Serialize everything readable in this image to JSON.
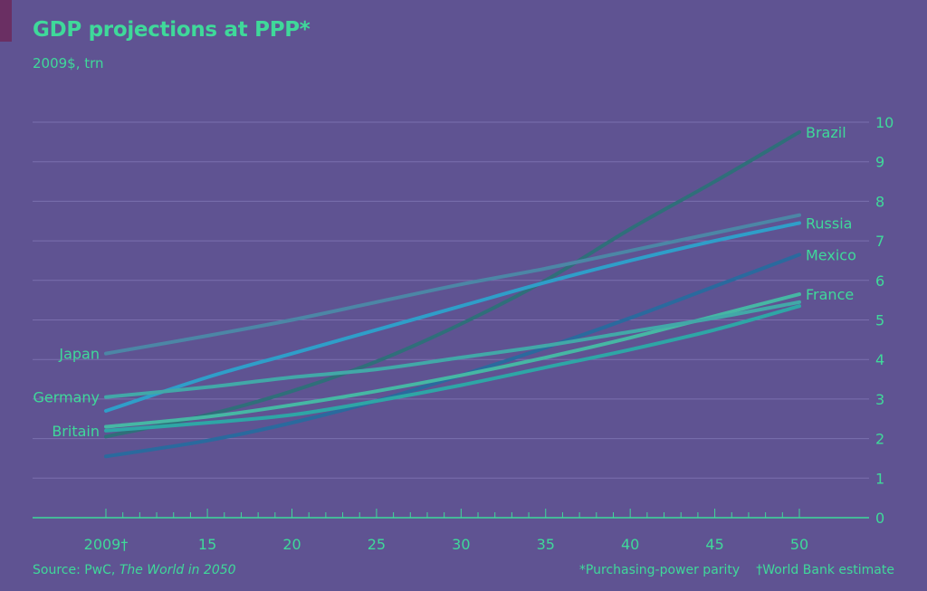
{
  "header": {
    "title": "GDP projections at PPP*",
    "subtitle": "2009$, trn"
  },
  "footer": {
    "source_prefix": "Source: PwC, ",
    "source_title": "The World in 2050",
    "footnote_ppp": "*Purchasing-power parity",
    "footnote_wb": "†World Bank estimate"
  },
  "colors": {
    "background": "#5f5392",
    "text": "#3fd99a",
    "grid": "#7a6fae",
    "axis": "#3fd99a",
    "accent_tab": "#6a2f63"
  },
  "chart_data": {
    "type": "line",
    "title": "GDP projections at PPP*",
    "subtitle": "2009$, trn",
    "xlabel": "",
    "ylabel": "",
    "x": [
      2009,
      2015,
      2020,
      2025,
      2030,
      2035,
      2040,
      2045,
      2050
    ],
    "x_tick_labels": [
      "2009†",
      "15",
      "20",
      "25",
      "30",
      "35",
      "40",
      "45",
      "50"
    ],
    "xlim": [
      2009,
      2050
    ],
    "ylim": [
      0,
      10
    ],
    "y_ticks": [
      0,
      1,
      2,
      3,
      4,
      5,
      6,
      7,
      8,
      9,
      10
    ],
    "grid": true,
    "y_axis_side": "right",
    "series": [
      {
        "name": "Brazil",
        "label_side": "right",
        "color": "#2f6f7a",
        "values": [
          2.05,
          2.6,
          3.2,
          3.95,
          4.9,
          6.0,
          7.3,
          8.5,
          9.75
        ]
      },
      {
        "name": "Russia",
        "label_side": "right",
        "color": "#2f9ec9",
        "values": [
          2.7,
          3.55,
          4.15,
          4.75,
          5.35,
          5.95,
          6.5,
          7.0,
          7.45
        ]
      },
      {
        "name": "Mexico",
        "label_side": "right",
        "color": "#2a6a9e",
        "values": [
          1.55,
          1.95,
          2.4,
          2.95,
          3.6,
          4.3,
          5.05,
          5.85,
          6.65
        ]
      },
      {
        "name": "France",
        "label_side": "right",
        "color": "#46b7a4",
        "values": [
          2.3,
          2.55,
          2.85,
          3.2,
          3.6,
          4.05,
          4.55,
          5.1,
          5.65
        ]
      },
      {
        "name": "Japan",
        "label_side": "left",
        "color": "#4c86a6",
        "values": [
          4.15,
          4.6,
          5.0,
          5.45,
          5.9,
          6.3,
          6.75,
          7.2,
          7.65
        ]
      },
      {
        "name": "Germany",
        "label_side": "left",
        "color": "#42a8a8",
        "values": [
          3.05,
          3.3,
          3.55,
          3.75,
          4.05,
          4.35,
          4.7,
          5.05,
          5.45
        ]
      },
      {
        "name": "Britain",
        "label_side": "left",
        "color": "#2ea6a6",
        "values": [
          2.2,
          2.4,
          2.6,
          2.95,
          3.35,
          3.8,
          4.25,
          4.75,
          5.35
        ]
      }
    ]
  }
}
